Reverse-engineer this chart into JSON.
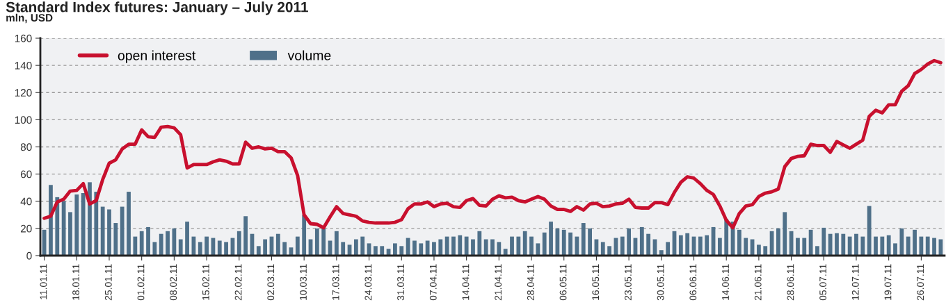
{
  "chart_data": {
    "type": "bar",
    "title": "Standard Index futures: January – July 2011",
    "ylabel": "mln, USD",
    "categories": [
      "11.01.11",
      null,
      null,
      null,
      null,
      "18.01.11",
      null,
      null,
      null,
      null,
      "25.01.11",
      null,
      null,
      null,
      null,
      "01.02.11",
      null,
      null,
      null,
      null,
      "08.02.11",
      null,
      null,
      null,
      null,
      "15.02.11",
      null,
      null,
      null,
      null,
      "22.02.11",
      null,
      null,
      null,
      null,
      "02.03.11",
      null,
      null,
      null,
      null,
      "10.03.11",
      null,
      null,
      null,
      null,
      "17.03.11",
      null,
      null,
      null,
      null,
      "24.03.11",
      null,
      null,
      null,
      null,
      "31.03.11",
      null,
      null,
      null,
      null,
      "07.04.11",
      null,
      null,
      null,
      null,
      "14.04.11",
      null,
      null,
      null,
      null,
      "21.04.11",
      null,
      null,
      null,
      null,
      "28.04.11",
      null,
      null,
      null,
      null,
      "06.05.11",
      null,
      null,
      null,
      null,
      "16.05.11",
      null,
      null,
      null,
      null,
      "23.05.11",
      null,
      null,
      null,
      null,
      "30.05.11",
      null,
      null,
      null,
      null,
      "06.06.11",
      null,
      null,
      null,
      null,
      "14.06.11",
      null,
      null,
      null,
      null,
      "21.06.11",
      null,
      null,
      null,
      null,
      "28.06.11",
      null,
      null,
      null,
      null,
      "05.07.11",
      null,
      null,
      null,
      null,
      "12.07.11",
      null,
      null,
      null,
      null,
      "19.07.11",
      null,
      null,
      null,
      null,
      "26.07.11",
      null,
      null,
      null
    ],
    "series": [
      {
        "name": "volume",
        "color": "#4f7089",
        "values": [
          19,
          52,
          43,
          40,
          32,
          45,
          46,
          54,
          47,
          36,
          34,
          24,
          36,
          47,
          14,
          18,
          21,
          10,
          16,
          18,
          20,
          12,
          25,
          14,
          10,
          14,
          13,
          11,
          10,
          13,
          18,
          29,
          16,
          7,
          12,
          14,
          16,
          10,
          6,
          14,
          30,
          12,
          20,
          20,
          11,
          18,
          10,
          8,
          12,
          14,
          9,
          7,
          7,
          5,
          9,
          7,
          13,
          11,
          9,
          11,
          10,
          12,
          14,
          14,
          15,
          14,
          12,
          18,
          12,
          12,
          10,
          5,
          14,
          14,
          18,
          14,
          9,
          17,
          25,
          20,
          19,
          17,
          14,
          24,
          20,
          12,
          10,
          7,
          13,
          14,
          20,
          13,
          21,
          16,
          12,
          4,
          10,
          18,
          15,
          16.5,
          14,
          14,
          15,
          21,
          13,
          27,
          25,
          19,
          13,
          12,
          8,
          7,
          18,
          20,
          32,
          18,
          13,
          13,
          19,
          7,
          20.5,
          16,
          16.5,
          16,
          14,
          16,
          14,
          36.5,
          14,
          14,
          15,
          9,
          20,
          14,
          19,
          14,
          14,
          13,
          12
        ]
      },
      {
        "name": "open interest",
        "type": "line",
        "color": "#c8102e",
        "values": [
          27.5,
          29,
          39.5,
          41.5,
          47.5,
          48,
          53,
          38,
          40.5,
          56,
          68,
          70.5,
          78.5,
          82,
          82,
          92.5,
          87.5,
          87,
          94.5,
          95,
          94,
          89,
          64.5,
          67,
          67,
          67,
          69,
          70.5,
          69.5,
          67.5,
          67.5,
          83.5,
          79,
          80,
          78.5,
          79,
          76.5,
          76.5,
          72,
          59,
          30,
          23.5,
          23,
          20.5,
          28.5,
          36,
          31,
          30,
          29,
          25.5,
          24.5,
          24,
          24,
          24,
          24.5,
          26.5,
          34.5,
          38,
          38,
          39.5,
          36,
          38,
          38.5,
          36,
          35.5,
          40.5,
          42,
          37,
          36.5,
          41.5,
          44,
          42.5,
          43,
          40.5,
          39.5,
          41.5,
          43.5,
          41.5,
          36.5,
          34,
          34,
          32.5,
          36,
          33.5,
          38,
          38.5,
          36,
          36.5,
          38,
          38.5,
          41.5,
          35.5,
          35,
          35,
          39,
          39,
          37.5,
          46.5,
          54,
          58,
          57,
          53,
          48,
          45,
          36.5,
          26,
          20.5,
          31,
          36.5,
          37.5,
          43.5,
          46,
          47,
          49,
          65.5,
          71.5,
          73,
          73.5,
          82,
          81,
          81,
          76,
          84,
          81.5,
          79,
          82,
          85,
          102.5,
          107,
          105,
          111,
          111,
          121,
          125,
          134,
          137,
          141,
          143.5,
          142
        ]
      }
    ],
    "ylim": [
      0,
      160
    ],
    "yticks": [
      0,
      20,
      40,
      60,
      80,
      100,
      120,
      140,
      160
    ],
    "grid": "y",
    "legend": "top left"
  }
}
